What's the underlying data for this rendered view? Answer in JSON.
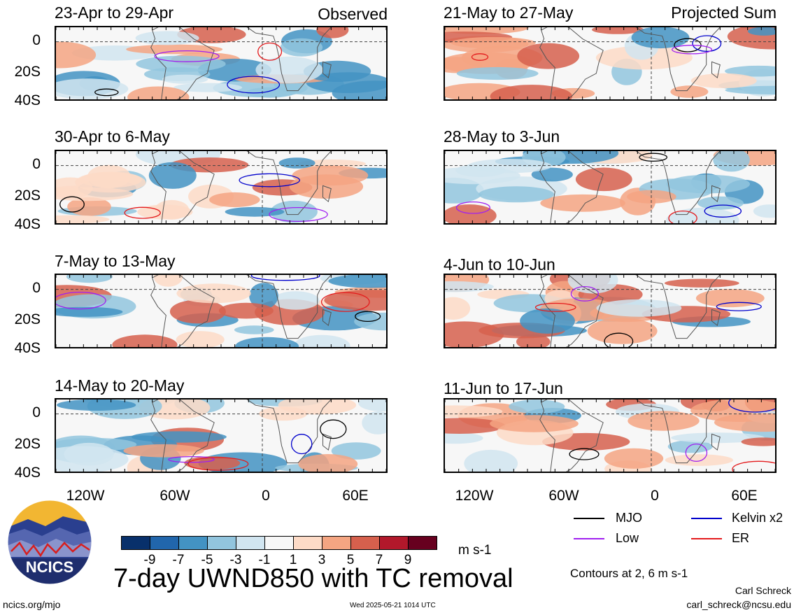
{
  "panels": [
    {
      "title": "23-Apr to 29-Apr",
      "tag": "Observed",
      "column": 0,
      "row": 0
    },
    {
      "title": "30-Apr to 6-May",
      "tag": "",
      "column": 0,
      "row": 1
    },
    {
      "title": "7-May to 13-May",
      "tag": "",
      "column": 0,
      "row": 2
    },
    {
      "title": "14-May to 20-May",
      "tag": "",
      "column": 0,
      "row": 3
    },
    {
      "title": "21-May to 27-May",
      "tag": "Projected Sum",
      "column": 1,
      "row": 0
    },
    {
      "title": "28-May to 3-Jun",
      "tag": "",
      "column": 1,
      "row": 1
    },
    {
      "title": "4-Jun to 10-Jun",
      "tag": "",
      "column": 1,
      "row": 2
    },
    {
      "title": "11-Jun to 17-Jun",
      "tag": "",
      "column": 1,
      "row": 3
    }
  ],
  "lat_labels": [
    "0",
    "20S",
    "40S"
  ],
  "lon_labels": [
    "120W",
    "60W",
    "0",
    "60E"
  ],
  "colorbar": {
    "colors": [
      "#08306b",
      "#2166ac",
      "#4393c3",
      "#92c5de",
      "#d1e5f0",
      "#f7f7f7",
      "#fddbc7",
      "#f4a582",
      "#d6604d",
      "#b2182b",
      "#67001f"
    ],
    "labels": [
      "-9",
      "-7",
      "-5",
      "-3",
      "-1",
      "1",
      "3",
      "5",
      "7",
      "9"
    ],
    "units": "m s-1"
  },
  "legend": {
    "items": [
      {
        "label": "MJO",
        "color": "#000000"
      },
      {
        "label": "Kelvin x2",
        "color": "#0000cc"
      },
      {
        "label": "Low",
        "color": "#a020f0"
      },
      {
        "label": "ER",
        "color": "#e41a1c"
      }
    ],
    "contours_note": "Contours at 2, 6 m s-1"
  },
  "main_title": "7-day UWND850 with TC removal",
  "logo_text": "NCICS",
  "footer": {
    "left": "ncics.org/mjo",
    "center": "Wed 2025-05-21 1014 UTC",
    "author": "Carl Schreck",
    "email": "carl_schreck@ncsu.edu"
  }
}
